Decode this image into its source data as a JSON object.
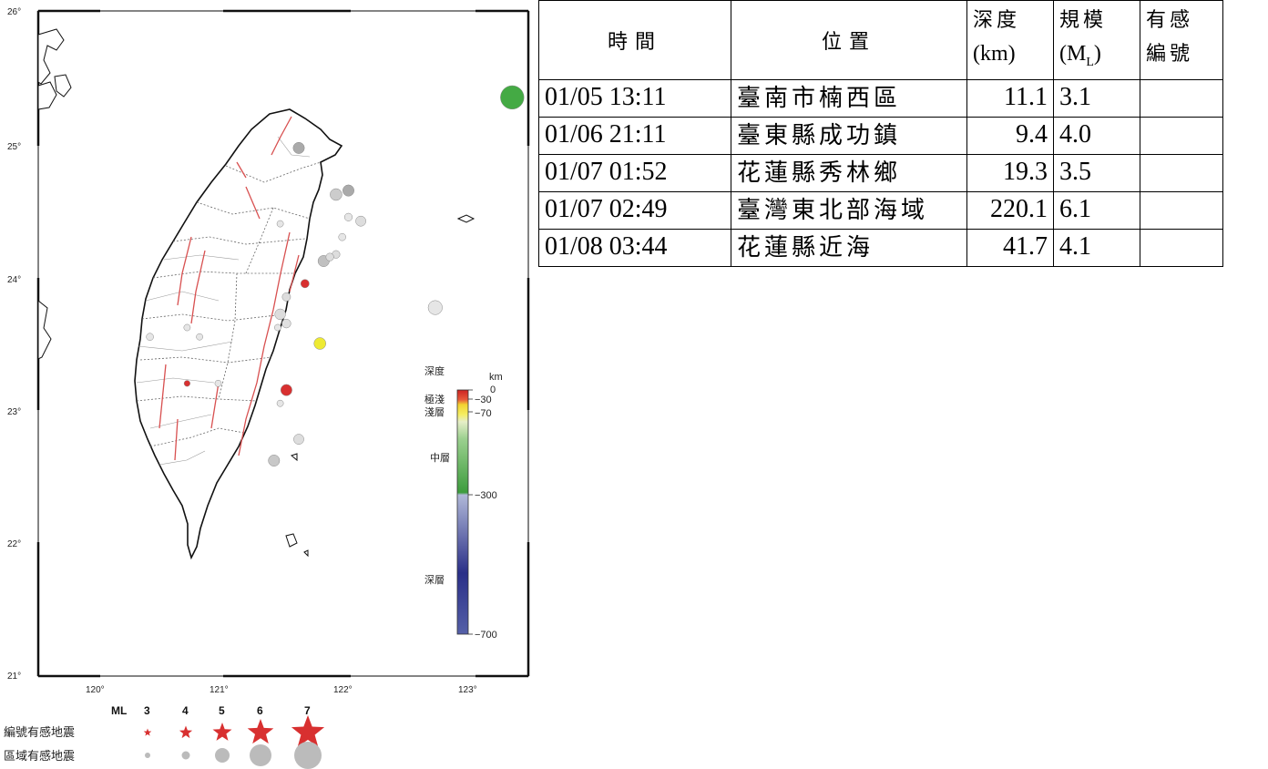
{
  "map": {
    "lat_ticks": [
      "26°",
      "25°",
      "24°",
      "23°",
      "22°",
      "21°"
    ],
    "lon_ticks": [
      "120°",
      "121°",
      "122°",
      "123°"
    ],
    "extent": {
      "lon_min": 119.35,
      "lon_max": 123.3,
      "lat_min": 21,
      "lat_max": 26
    },
    "events": [
      {
        "lon": 123.17,
        "lat": 25.35,
        "ml": 6.1,
        "color": "#44aa44"
      },
      {
        "lon": 121.62,
        "lat": 23.5,
        "ml": 4.1,
        "color": "#eeea33"
      },
      {
        "lon": 121.35,
        "lat": 23.15,
        "ml": 4.0,
        "color": "#d83030"
      },
      {
        "lon": 121.5,
        "lat": 23.95,
        "ml": 3.5,
        "color": "#d83030"
      },
      {
        "lon": 120.55,
        "lat": 23.2,
        "ml": 3.1,
        "color": "#d83030"
      },
      {
        "lon": 121.45,
        "lat": 24.97,
        "ml": 4.0,
        "color": "#aaaaaa"
      },
      {
        "lon": 121.85,
        "lat": 24.65,
        "ml": 4.0,
        "color": "#aaaaaa"
      },
      {
        "lon": 121.75,
        "lat": 24.62,
        "ml": 4.1,
        "color": "#cccccc"
      },
      {
        "lon": 121.95,
        "lat": 24.42,
        "ml": 3.8,
        "color": "#dddddd"
      },
      {
        "lon": 121.85,
        "lat": 24.45,
        "ml": 3.4,
        "color": "#e6e6e6"
      },
      {
        "lon": 121.8,
        "lat": 24.3,
        "ml": 3.3,
        "color": "#e6e6e6"
      },
      {
        "lon": 121.65,
        "lat": 24.12,
        "ml": 4.0,
        "color": "#c0c0c0"
      },
      {
        "lon": 121.75,
        "lat": 24.17,
        "ml": 3.4,
        "color": "#dddddd"
      },
      {
        "lon": 121.7,
        "lat": 24.15,
        "ml": 3.4,
        "color": "#dddddd"
      },
      {
        "lon": 121.3,
        "lat": 24.4,
        "ml": 3.2,
        "color": "#e6e6e6"
      },
      {
        "lon": 121.35,
        "lat": 23.85,
        "ml": 3.5,
        "color": "#dddddd"
      },
      {
        "lon": 121.3,
        "lat": 23.72,
        "ml": 3.9,
        "color": "#dddddd"
      },
      {
        "lon": 121.35,
        "lat": 23.65,
        "ml": 3.6,
        "color": "#e0e0e0"
      },
      {
        "lon": 121.28,
        "lat": 23.62,
        "ml": 3.2,
        "color": "#e6e6e6"
      },
      {
        "lon": 120.25,
        "lat": 23.55,
        "ml": 3.3,
        "color": "#e6e6e6"
      },
      {
        "lon": 120.55,
        "lat": 23.62,
        "ml": 3.2,
        "color": "#e6e6e6"
      },
      {
        "lon": 120.65,
        "lat": 23.55,
        "ml": 3.2,
        "color": "#e6e6e6"
      },
      {
        "lon": 121.3,
        "lat": 23.05,
        "ml": 3.2,
        "color": "#e6e6e6"
      },
      {
        "lon": 120.8,
        "lat": 23.2,
        "ml": 3.2,
        "color": "#e6e6e6"
      },
      {
        "lon": 121.45,
        "lat": 22.78,
        "ml": 3.8,
        "color": "#dddddd"
      },
      {
        "lon": 121.25,
        "lat": 22.62,
        "ml": 4.0,
        "color": "#c8c8c8"
      },
      {
        "lon": 122.55,
        "lat": 23.77,
        "ml": 4.5,
        "color": "#e6e6e6"
      }
    ]
  },
  "colorbar": {
    "title": "深度",
    "unit": "km",
    "tick_labels": [
      "0",
      "−30",
      "−70",
      "−300",
      "−700"
    ],
    "layer_labels": [
      "極淺",
      "淺層",
      "中層",
      "深層"
    ]
  },
  "legend": {
    "header": "ML",
    "magnitudes": [
      "3",
      "4",
      "5",
      "6",
      "7"
    ],
    "star_row_label": "編號有感地震",
    "circle_row_label": "區域有感地震",
    "star_color": "#d83030",
    "circle_color": "#bbbbbb"
  },
  "table": {
    "headers": {
      "time": "時間",
      "location": "位置",
      "depth_zh": "深度",
      "depth_unit": "(km)",
      "mag_zh": "規模",
      "mag_unit_pre": "(M",
      "mag_unit_sub": "L",
      "mag_unit_post": ")",
      "felt_line1": "有感",
      "felt_line2": "編號"
    },
    "rows": [
      {
        "time": "01/05 13:11",
        "location": "臺南市楠西區",
        "depth": "11.1",
        "magnitude": "3.1",
        "felt_no": ""
      },
      {
        "time": "01/06 21:11",
        "location": "臺東縣成功鎮",
        "depth": "9.4",
        "magnitude": "4.0",
        "felt_no": ""
      },
      {
        "time": "01/07 01:52",
        "location": "花蓮縣秀林鄉",
        "depth": "19.3",
        "magnitude": "3.5",
        "felt_no": ""
      },
      {
        "time": "01/07 02:49",
        "location": "臺灣東北部海域",
        "depth": "220.1",
        "magnitude": "6.1",
        "felt_no": ""
      },
      {
        "time": "01/08 03:44",
        "location": "花蓮縣近海",
        "depth": "41.7",
        "magnitude": "4.1",
        "felt_no": ""
      }
    ]
  }
}
